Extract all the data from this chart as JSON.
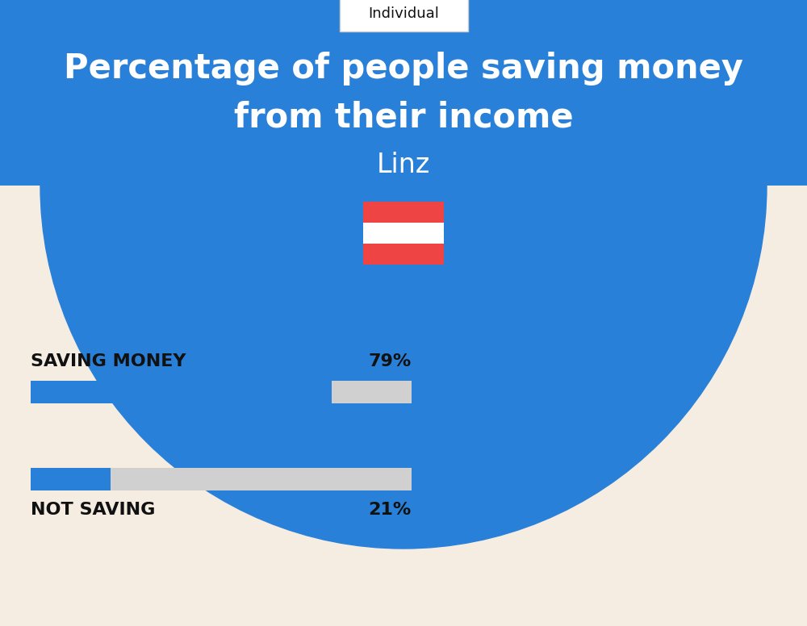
{
  "title_line1": "Percentage of people saving money",
  "title_line2": "from their income",
  "city": "Linz",
  "tag_label": "Individual",
  "saving_label": "SAVING MONEY",
  "saving_value": 79,
  "saving_pct_text": "79%",
  "not_saving_label": "NOT SAVING",
  "not_saving_value": 21,
  "not_saving_pct_text": "21%",
  "bar_color": "#2980d9",
  "bar_bg_color": "#d0d0d0",
  "bg_top_color": "#2980d9",
  "bg_bottom_color": "#f5ece2",
  "title_color": "#ffffff",
  "city_color": "#ffffff",
  "tag_bg_color": "#ffffff",
  "tag_text_color": "#111111",
  "label_color": "#111111",
  "pct_color": "#111111",
  "flag_red": "#ef4444",
  "flag_white": "#ffffff",
  "tag_border_color": "#cccccc"
}
